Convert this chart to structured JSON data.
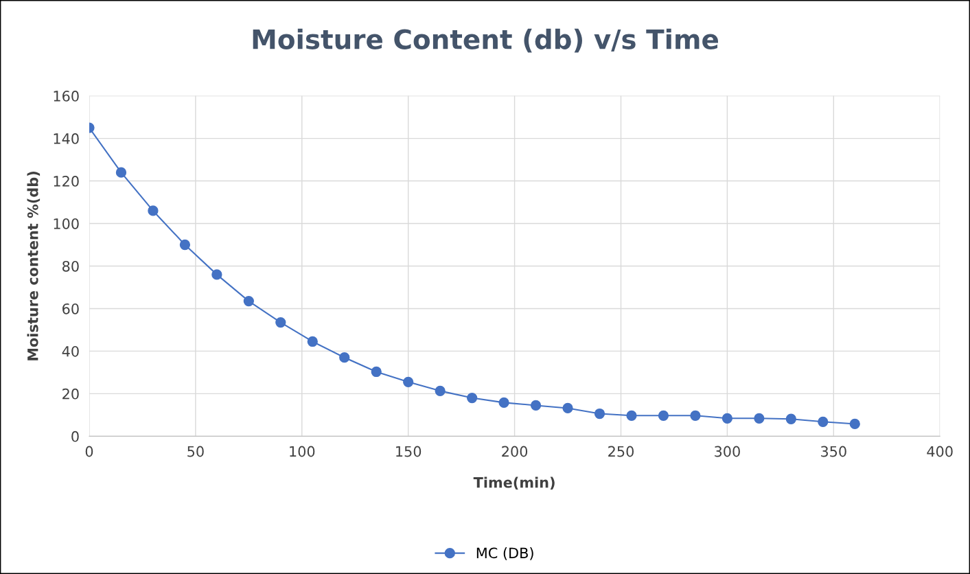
{
  "chart_data": {
    "type": "line",
    "title": "Moisture Content (db) v/s Time",
    "xlabel": "Time(min)",
    "ylabel": "Moisture content %(db)",
    "x": [
      0,
      15,
      30,
      45,
      60,
      75,
      90,
      105,
      120,
      135,
      150,
      165,
      180,
      195,
      210,
      225,
      240,
      255,
      270,
      285,
      300,
      315,
      330,
      345,
      360
    ],
    "series": [
      {
        "name": "MC (DB)",
        "color": "#4472c4",
        "values": [
          145,
          124,
          106,
          90,
          76,
          63.5,
          53.5,
          44.5,
          37,
          30.3,
          25.5,
          21.3,
          18,
          15.8,
          14.5,
          13.2,
          10.6,
          9.7,
          9.7,
          9.7,
          8.4,
          8.4,
          8.1,
          6.8,
          5.8
        ]
      }
    ],
    "xlim": [
      0,
      400
    ],
    "xticks": [
      0,
      50,
      100,
      150,
      200,
      250,
      300,
      350,
      400
    ],
    "ylim": [
      0,
      160
    ],
    "yticks": [
      0,
      20,
      40,
      60,
      80,
      100,
      120,
      140,
      160
    ],
    "grid": true,
    "legend": "bottom",
    "marker": "circle",
    "line_style": "solid"
  }
}
